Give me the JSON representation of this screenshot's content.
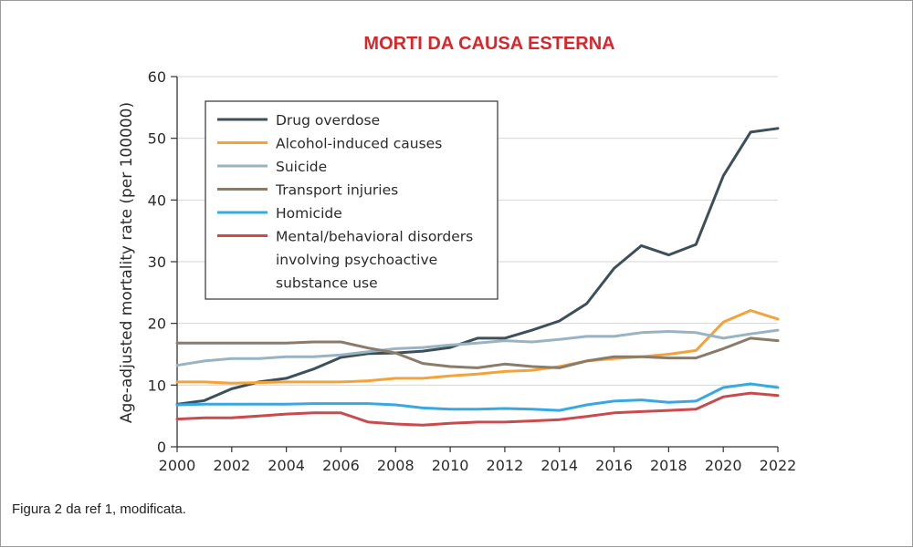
{
  "caption": "Figura 2 da ref 1, modificata.",
  "chart_data": {
    "type": "line",
    "title": "MORTI DA CAUSA ESTERNA",
    "xlabel": "",
    "ylabel": "Age-adjusted mortality rate (per 100000)",
    "xlim": [
      2000,
      2022
    ],
    "ylim": [
      0,
      60
    ],
    "x_ticks": [
      2000,
      2002,
      2004,
      2006,
      2008,
      2010,
      2012,
      2014,
      2016,
      2018,
      2020,
      2022
    ],
    "y_ticks": [
      0,
      10,
      20,
      30,
      40,
      50,
      60
    ],
    "grid": "horizontal",
    "legend_position": "top-left",
    "x": [
      2000,
      2001,
      2002,
      2003,
      2004,
      2005,
      2006,
      2007,
      2008,
      2009,
      2010,
      2011,
      2012,
      2013,
      2014,
      2015,
      2016,
      2017,
      2018,
      2019,
      2020,
      2021,
      2022
    ],
    "series": [
      {
        "name": "Drug overdose",
        "color": "#3d5059",
        "values": [
          6.9,
          7.5,
          9.4,
          10.5,
          11.1,
          12.6,
          14.5,
          15.1,
          15.2,
          15.5,
          16.1,
          17.6,
          17.6,
          18.9,
          20.4,
          23.2,
          28.9,
          32.6,
          31.1,
          32.8,
          43.9,
          51.0,
          51.6
        ]
      },
      {
        "name": "Alcohol-induced causes",
        "color": "#f2a33a",
        "values": [
          10.5,
          10.5,
          10.3,
          10.4,
          10.5,
          10.5,
          10.5,
          10.7,
          11.1,
          11.1,
          11.5,
          11.8,
          12.2,
          12.4,
          13.0,
          13.9,
          14.3,
          14.6,
          15.0,
          15.6,
          20.2,
          22.1,
          20.7
        ]
      },
      {
        "name": "Suicide",
        "color": "#9ab3c3",
        "values": [
          13.2,
          13.9,
          14.3,
          14.3,
          14.6,
          14.6,
          14.9,
          15.4,
          15.9,
          16.1,
          16.5,
          16.8,
          17.2,
          17.0,
          17.4,
          17.9,
          17.9,
          18.5,
          18.7,
          18.5,
          17.6,
          18.3,
          18.9
        ]
      },
      {
        "name": "Transport injuries",
        "color": "#8a7b6b",
        "values": [
          16.8,
          16.8,
          16.8,
          16.8,
          16.8,
          17.0,
          17.0,
          16.0,
          15.2,
          13.5,
          13.0,
          12.8,
          13.4,
          13.0,
          12.8,
          13.9,
          14.6,
          14.6,
          14.4,
          14.4,
          15.9,
          17.6,
          17.2
        ]
      },
      {
        "name": "Homicide",
        "color": "#3aa8e0",
        "values": [
          6.8,
          6.9,
          6.9,
          6.9,
          6.9,
          7.0,
          7.0,
          7.0,
          6.8,
          6.3,
          6.1,
          6.1,
          6.2,
          6.1,
          5.9,
          6.8,
          7.4,
          7.6,
          7.2,
          7.4,
          9.6,
          10.2,
          9.6
        ]
      },
      {
        "name": "Mental/behavioral disorders involving psychoactive substance use",
        "color": "#c84b4e",
        "values": [
          4.5,
          4.7,
          4.7,
          5.0,
          5.3,
          5.5,
          5.5,
          4.0,
          3.7,
          3.5,
          3.8,
          4.0,
          4.0,
          4.2,
          4.4,
          4.9,
          5.5,
          5.7,
          5.9,
          6.1,
          8.1,
          8.7,
          8.3
        ]
      }
    ],
    "legend_lines": [
      [
        "Drug overdose"
      ],
      [
        "Alcohol-induced causes"
      ],
      [
        "Suicide"
      ],
      [
        "Transport injuries"
      ],
      [
        "Homicide"
      ],
      [
        "Mental/behavioral disorders",
        "involving psychoactive",
        "substance use"
      ]
    ]
  }
}
